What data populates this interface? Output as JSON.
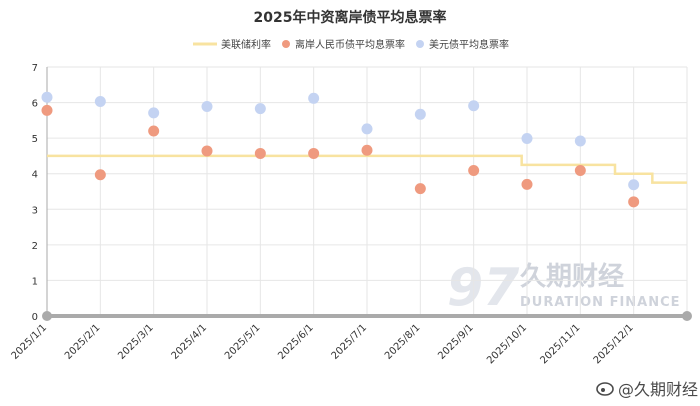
{
  "chart_data": {
    "type": "scatter",
    "title": "2025年中资离岸债平均息票率",
    "categories": [
      "2025/1/1",
      "2025/2/1",
      "2025/3/1",
      "2025/4/1",
      "2025/5/1",
      "2025/6/1",
      "2025/7/1",
      "2025/8/1",
      "2025/9/1",
      "2025/10/1",
      "2025/11/1",
      "2025/12/1"
    ],
    "ylim": [
      0,
      7
    ],
    "yticks": [
      0,
      1,
      2,
      3,
      4,
      5,
      6,
      7
    ],
    "grid": true,
    "legend_position": "top",
    "series": [
      {
        "name": "美联储利率",
        "kind": "step-line",
        "color": "#f8e3a0",
        "steps": [
          {
            "from": 0,
            "to": 8.9,
            "value": 4.5
          },
          {
            "from": 8.9,
            "to": 10.65,
            "value": 4.25
          },
          {
            "from": 10.65,
            "to": 11.35,
            "value": 4.0
          },
          {
            "from": 11.35,
            "to": 12,
            "value": 3.75
          }
        ]
      },
      {
        "name": "离岸人民币债平均息票率",
        "kind": "scatter",
        "color": "#ef9a7f",
        "values": [
          5.78,
          3.97,
          5.2,
          4.64,
          4.57,
          4.57,
          4.66,
          3.58,
          4.09,
          3.7,
          4.09,
          3.21
        ]
      },
      {
        "name": "美元债平均息票率",
        "kind": "scatter",
        "color": "#c4d3f2",
        "values": [
          6.15,
          6.03,
          5.71,
          5.89,
          5.83,
          6.12,
          5.26,
          5.67,
          5.91,
          4.99,
          4.92,
          3.69
        ]
      }
    ]
  },
  "watermark": {
    "brand": "久期财经",
    "sub": "DURATION FINANCE"
  },
  "corner_mark": {
    "text": "@久期财经"
  },
  "colors": {
    "axis": "#aaaaaa",
    "grid": "#e6e6e6"
  }
}
